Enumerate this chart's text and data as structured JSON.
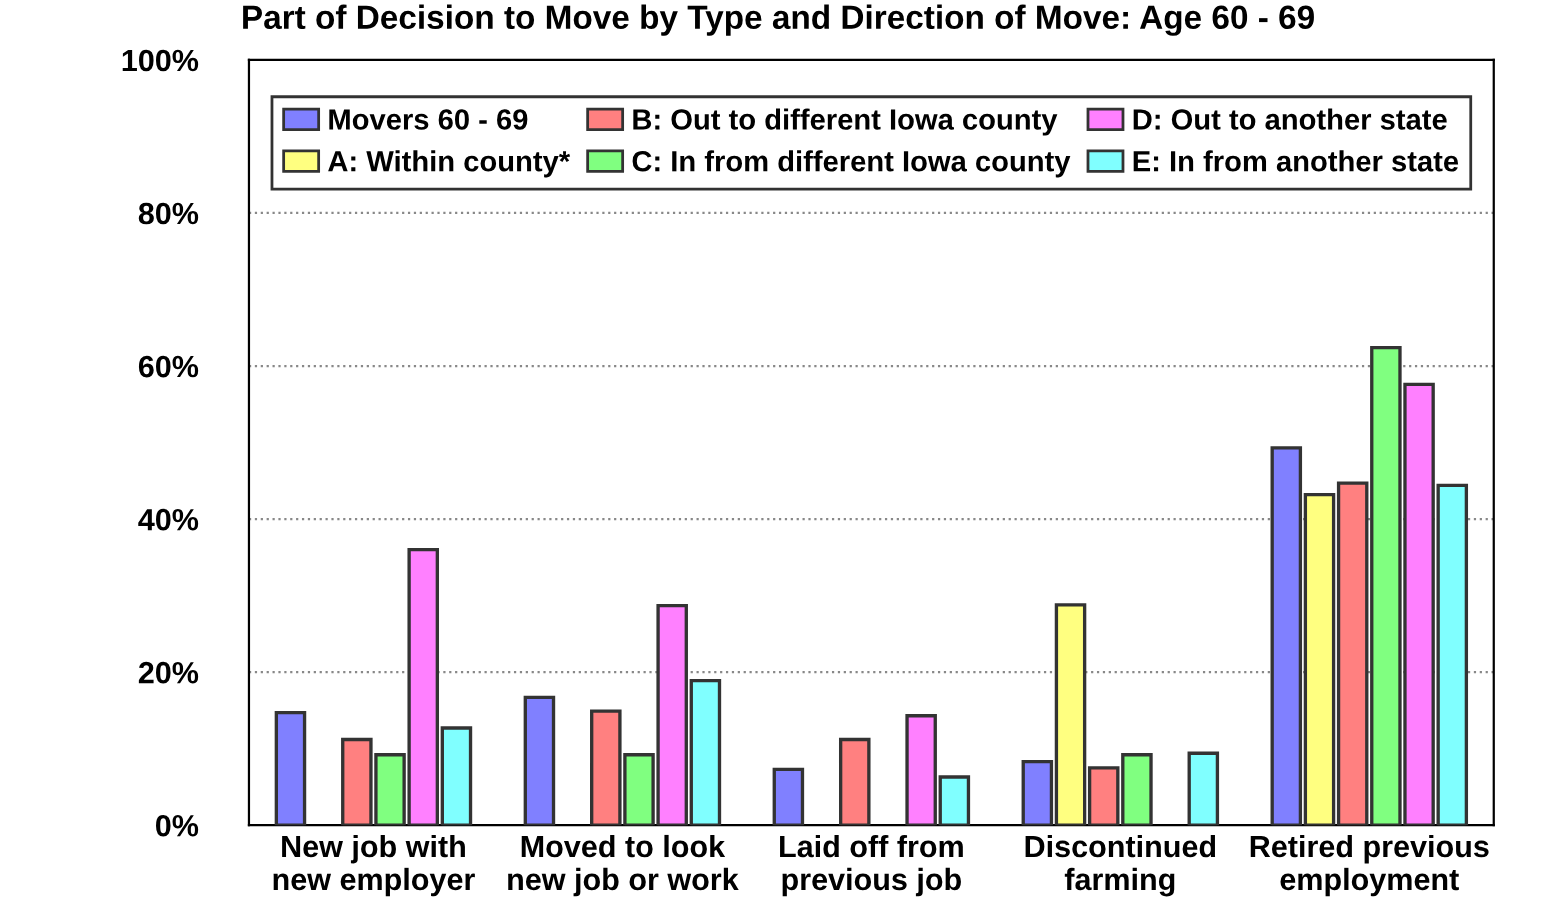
{
  "chart_data": {
    "type": "bar",
    "title": "Part of Decision to Move by Type and Direction of Move: Age 60 - 69",
    "categories": [
      "New job with\nnew employer",
      "Moved to look\nnew job or work",
      "Laid off from\nprevious job",
      "Discontinued\nfarming",
      "Retired previous\nemployment"
    ],
    "series": [
      {
        "name": "Movers 60 - 69",
        "color": "#8080ff",
        "values": [
          14.7,
          16.7,
          7.3,
          8.3,
          49.3
        ]
      },
      {
        "name": "A: Within county*",
        "color": "#ffff80",
        "values": [
          null,
          null,
          null,
          28.8,
          43.2
        ]
      },
      {
        "name": "B: Out to different Iowa county",
        "color": "#ff8080",
        "values": [
          11.2,
          14.9,
          11.2,
          7.5,
          44.7
        ]
      },
      {
        "name": "C: In from different Iowa county",
        "color": "#80ff80",
        "values": [
          9.2,
          9.2,
          null,
          9.2,
          62.4
        ]
      },
      {
        "name": "D: Out to another state",
        "color": "#ff80ff",
        "values": [
          36.0,
          28.7,
          14.3,
          null,
          57.6
        ]
      },
      {
        "name": "E: In from another state",
        "color": "#80ffff",
        "values": [
          12.7,
          18.9,
          6.3,
          9.4,
          44.4
        ]
      }
    ],
    "ylim": [
      0,
      100
    ],
    "yticks": [
      {
        "value": 0,
        "label": "0%"
      },
      {
        "value": 20,
        "label": "20%"
      },
      {
        "value": 40,
        "label": "40%"
      },
      {
        "value": 60,
        "label": "60%"
      },
      {
        "value": 80,
        "label": "80%"
      },
      {
        "value": 100,
        "label": "100%"
      }
    ],
    "grid": "y",
    "legend": "top"
  }
}
